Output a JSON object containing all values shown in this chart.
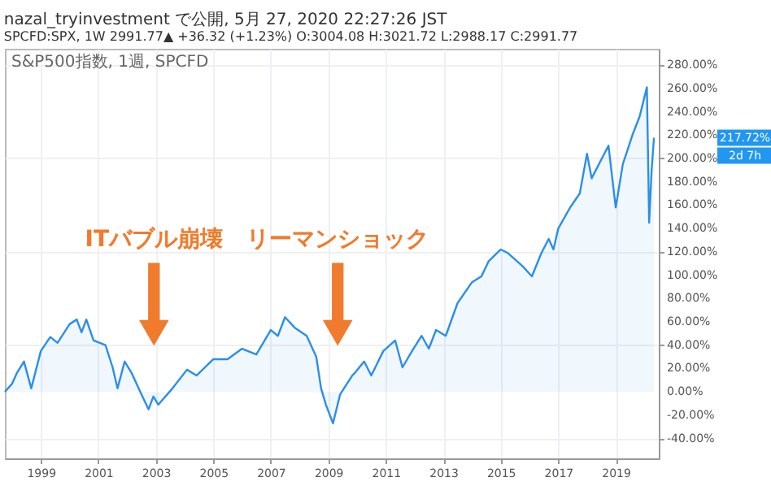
{
  "chart_data": {
    "type": "area",
    "title": "nazal_tryinvestment で公開, 5月 27, 2020 22:27:26 JST",
    "subtitle": "SPCFD:SPX, 1W 2991.77▲ +36.32 (+1.23%) O:3004.08 H:3021.72 L:2988.17 C:2991.77",
    "x": [
      "1997-10",
      "1998-01",
      "1998-03",
      "1998-06",
      "1998-09",
      "1999-01",
      "1999-05",
      "1999-08",
      "2000-01",
      "2000-04",
      "2000-06",
      "2000-08",
      "2000-11",
      "2001-04",
      "2001-07",
      "2001-09",
      "2001-12",
      "2002-03",
      "2002-07",
      "2002-10",
      "2002-12",
      "2003-02",
      "2003-08",
      "2004-02",
      "2004-06",
      "2005-01",
      "2005-07",
      "2006-01",
      "2006-07",
      "2007-01",
      "2007-04",
      "2007-07",
      "2007-11",
      "2008-04",
      "2008-08",
      "2008-10",
      "2008-12",
      "2009-03",
      "2009-06",
      "2009-11",
      "2009-12",
      "2010-04",
      "2010-07",
      "2010-12",
      "2011-05",
      "2011-08",
      "2011-12",
      "2012-04",
      "2012-07",
      "2012-10",
      "2013-02",
      "2013-07",
      "2014-01",
      "2014-05",
      "2014-08",
      "2015-01",
      "2015-04",
      "2015-10",
      "2016-02",
      "2016-06",
      "2016-09",
      "2016-11",
      "2017-01",
      "2017-06",
      "2017-10",
      "2018-01",
      "2018-03",
      "2018-10",
      "2019-01",
      "2019-04",
      "2019-08",
      "2019-11",
      "2020-02",
      "2020-03",
      "2020-04",
      "2020-05"
    ],
    "series": [
      {
        "color": "#2b8fe8",
        "values": [
          0,
          7,
          16,
          26,
          3,
          35,
          47,
          42,
          58,
          62,
          51,
          62,
          44,
          40,
          21,
          3,
          26,
          16,
          -2,
          -15,
          -4,
          -11,
          3,
          19,
          14,
          28,
          28,
          37,
          32,
          53,
          48,
          64,
          55,
          48,
          30,
          3,
          -11,
          -27,
          -2,
          14,
          16,
          26,
          14,
          35,
          44,
          21,
          35,
          48,
          37,
          53,
          48,
          76,
          94,
          99,
          112,
          122,
          119,
          108,
          99,
          119,
          131,
          122,
          140,
          158,
          170,
          204,
          183,
          211,
          158,
          195,
          220,
          236,
          261,
          145,
          190,
          217.72
        ]
      }
    ],
    "xlim": [
      "1997-10",
      "2020-07"
    ],
    "xticks": [
      "1999",
      "2001",
      "2003",
      "2005",
      "2007",
      "2009",
      "2011",
      "2013",
      "2015",
      "2017",
      "2019"
    ],
    "ylim": [
      -57,
      294
    ],
    "yticks": [
      {
        "value": -40,
        "label": "-40.00%"
      },
      {
        "value": -20,
        "label": "-20.00%"
      },
      {
        "value": 0,
        "label": "0.00%"
      },
      {
        "value": 20,
        "label": "20.00%"
      },
      {
        "value": 40,
        "label": "40.00%"
      },
      {
        "value": 60,
        "label": "60.00%"
      },
      {
        "value": 80,
        "label": "80.00%"
      },
      {
        "value": 100,
        "label": "100.00%"
      },
      {
        "value": 120,
        "label": "120.00%"
      },
      {
        "value": 140,
        "label": "140.00%"
      },
      {
        "value": 160,
        "label": "160.00%"
      },
      {
        "value": 180,
        "label": "180.00%"
      },
      {
        "value": 200,
        "label": "200.00%"
      },
      {
        "value": 220,
        "label": "220.00%"
      },
      {
        "value": 240,
        "label": "240.00%"
      },
      {
        "value": 260,
        "label": "260.00%"
      },
      {
        "value": 280,
        "label": "280.00%"
      }
    ],
    "grid": true,
    "annotations": [
      "S&P500指数, 1週, SPCFD",
      "ITバブル崩壊",
      "リーマンショック",
      "217.72%",
      "2d 7h"
    ]
  }
}
